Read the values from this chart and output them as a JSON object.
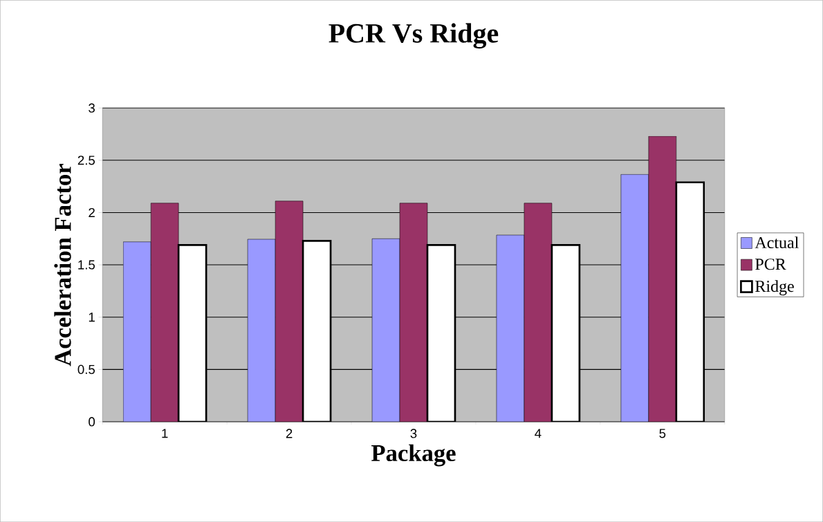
{
  "chart_data": {
    "type": "bar",
    "title": "PCR Vs Ridge",
    "xlabel": "Package",
    "ylabel": "Acceleration Factor",
    "categories": [
      "1",
      "2",
      "3",
      "4",
      "5"
    ],
    "series": [
      {
        "name": "Actual",
        "color": "#9999ff",
        "values": [
          1.72,
          1.745,
          1.75,
          1.785,
          2.365
        ]
      },
      {
        "name": "PCR",
        "color": "#993366",
        "values": [
          2.09,
          2.11,
          2.09,
          2.09,
          2.73
        ]
      },
      {
        "name": "Ridge",
        "color": "#ffffff",
        "values": [
          1.69,
          1.73,
          1.69,
          1.69,
          2.29
        ]
      }
    ],
    "ylim": [
      0,
      3
    ],
    "yticks": [
      0,
      0.5,
      1,
      1.5,
      2,
      2.5,
      3
    ],
    "grid": "y",
    "legend": "right"
  }
}
